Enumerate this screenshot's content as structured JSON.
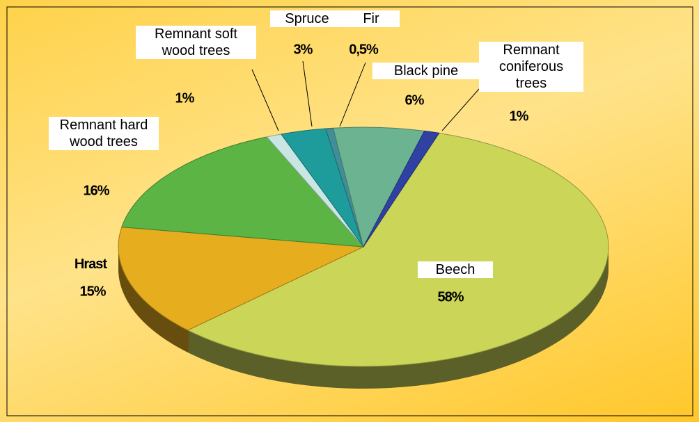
{
  "chart_data": {
    "type": "pie",
    "categories": [
      "Beech",
      "Hrast",
      "Remnant hard wood trees",
      "Remnant soft wood trees",
      "Spruce",
      "Fir",
      "Black pine",
      "Remnant coniferous trees"
    ],
    "values": [
      58,
      15,
      16,
      1,
      3,
      0.5,
      6,
      1
    ],
    "value_labels": [
      "58%",
      "15%",
      "16%",
      "1%",
      "3%",
      "0,5%",
      "6%",
      "1%"
    ],
    "colors": [
      "#cbd658",
      "#e6ad1e",
      "#5cb444",
      "#c9e6e4",
      "#1e9c9c",
      "#3f8e98",
      "#6cb391",
      "#2f42a3"
    ]
  }
}
